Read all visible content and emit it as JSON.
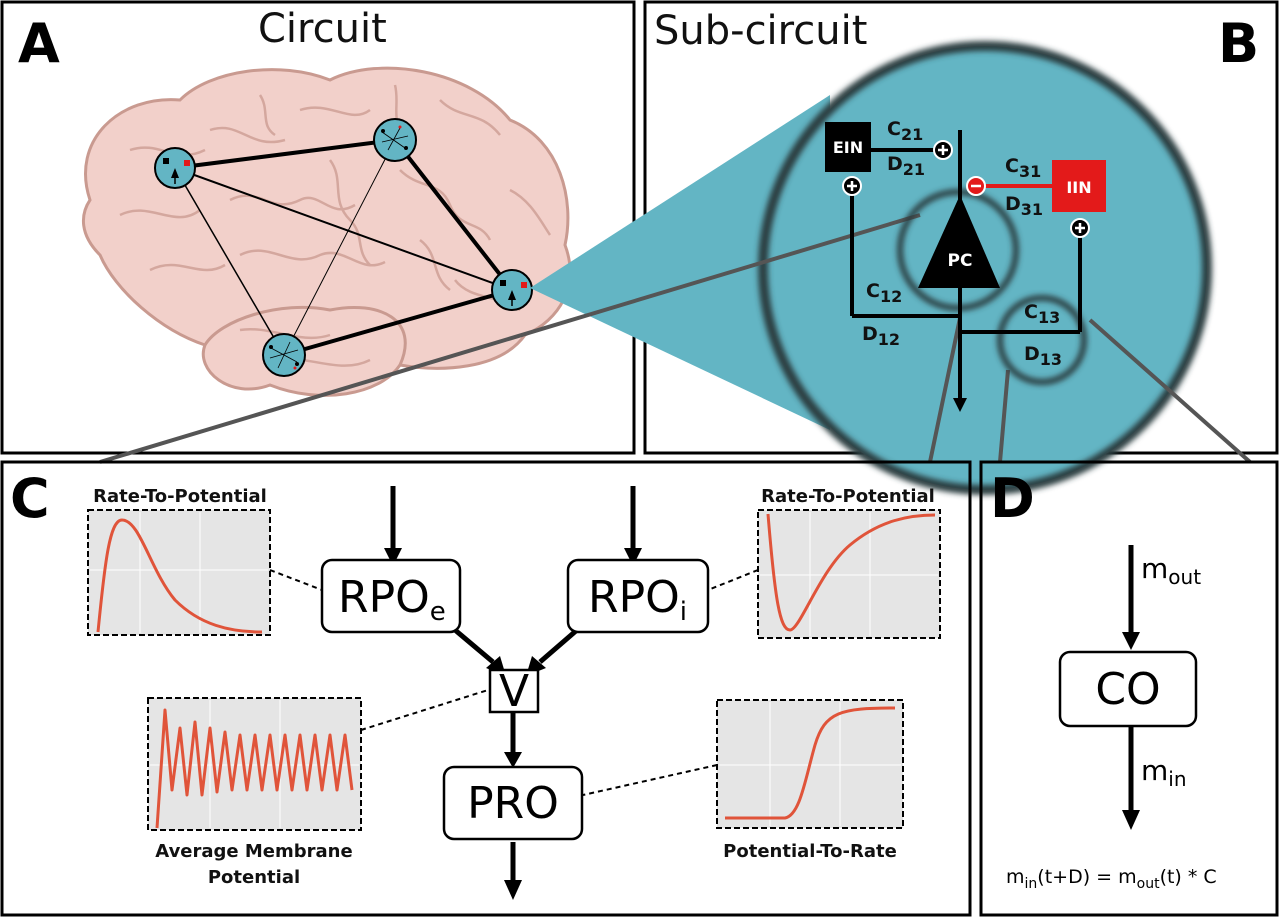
{
  "panel_a": {
    "letter": "A",
    "title": "Circuit"
  },
  "panel_b": {
    "letter": "B",
    "title": "Sub-circuit",
    "ein": "EIN",
    "iin": "IIN",
    "pc": "PC",
    "c21": "C",
    "c21_sub": "21",
    "d21": "D",
    "d21_sub": "21",
    "c31": "C",
    "c31_sub": "31",
    "d31": "D",
    "d31_sub": "31",
    "c12": "C",
    "c12_sub": "12",
    "d12": "D",
    "d12_sub": "12",
    "c13": "C",
    "c13_sub": "13",
    "d13": "D",
    "d13_sub": "13"
  },
  "panel_c": {
    "letter": "C",
    "rpo_e": "RPO",
    "rpo_e_sub": "e",
    "rpo_i": "RPO",
    "rpo_i_sub": "i",
    "v": "V",
    "pro": "PRO",
    "rtp_left_label": "Rate-To-Potential",
    "rtp_right_label": "Rate-To-Potential",
    "amp_label_line1": "Average Membrane",
    "amp_label_line2": "Potential",
    "ptr_label": "Potential-To-Rate"
  },
  "panel_d": {
    "letter": "D",
    "co": "CO",
    "m_out": "m",
    "m_out_sub": "out",
    "m_in": "m",
    "m_in_sub": "in",
    "eq_m1": "m",
    "eq_sub1": "in",
    "eq_mid": "(t+D) = m",
    "eq_sub2": "out",
    "eq_end": "(t) * C"
  },
  "colors": {
    "teal": "#63b5c4",
    "brain": "#f2d0ca",
    "brain_outline": "#c99a90",
    "red": "#e31a1a",
    "curve": "#e0543a",
    "plot_bg": "#e5e5e5"
  }
}
